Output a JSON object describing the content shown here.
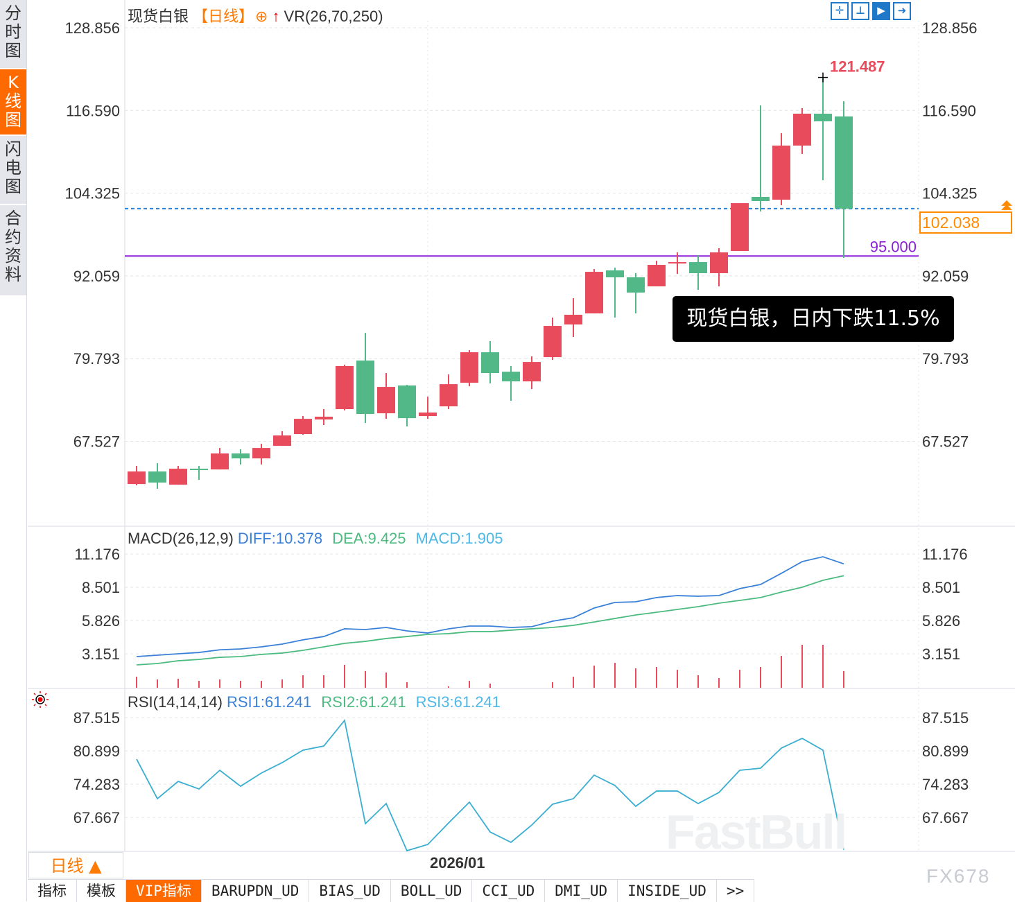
{
  "sidebar": {
    "items": [
      {
        "label": "分时图",
        "active": false
      },
      {
        "label": "K线图",
        "active": true
      },
      {
        "label": "闪电图",
        "active": false
      },
      {
        "label": "合约资料",
        "active": false
      }
    ]
  },
  "header": {
    "symbol": "现货白银",
    "period": "【日线】",
    "indicator": "VR(26,70,250)"
  },
  "toolbar": {
    "icons": [
      "crosshair-icon",
      "range-measure-icon",
      "play-chart-icon",
      "scroll-right-icon"
    ]
  },
  "annotation": "现货白银，日内下跌11.5%",
  "macd_header": {
    "name": "MACD(26,12,9)",
    "diff": "DIFF:10.378",
    "dea": "DEA:9.425",
    "macd": "MACD:1.905"
  },
  "rsi_header": {
    "name": "RSI(14,14,14)",
    "rsi1": "RSI1:61.241",
    "rsi2": "RSI2:61.241",
    "rsi3": "RSI3:61.241"
  },
  "bottom": {
    "period_button": "日线 ▲",
    "date_label": "2026/01"
  },
  "tabs": [
    "指标",
    "模板",
    "VIP指标",
    "BARUPDN_UD",
    "BIAS_UD",
    "BOLL_UD",
    "CCI_UD",
    "DMI_UD",
    "INSIDE_UD",
    ">>"
  ],
  "active_tab": 2,
  "watermark": {
    "brand": "FastBull",
    "code": "FX678"
  },
  "colors": {
    "up": "#e84b5c",
    "down": "#52b888",
    "diff": "#3a80d8",
    "dea": "#4cbb80",
    "rsi": "#3aaed0",
    "accent": "#ff6a00",
    "support": "#8a20d8",
    "last": "#ff8a00"
  },
  "chart_data": [
    {
      "type": "candlestick",
      "title": "现货白银【日线】",
      "y_ticks": [
        "128.856",
        "116.590",
        "104.325",
        "92.059",
        "79.793",
        "67.527"
      ],
      "ylim": [
        55.33,
        128.856
      ],
      "high_label": "121.487",
      "last_price": "102.038",
      "support_line": "95.000",
      "candles": [
        [
          61.19,
          63.87,
          60.99,
          63.05
        ],
        [
          63.05,
          64.28,
          60.48,
          61.4
        ],
        [
          61.09,
          63.87,
          61.09,
          63.46
        ],
        [
          63.46,
          63.87,
          61.81,
          63.35
        ],
        [
          63.35,
          66.54,
          63.35,
          65.72
        ],
        [
          65.72,
          66.34,
          64.08,
          64.99
        ],
        [
          64.99,
          67.16,
          64.08,
          66.54
        ],
        [
          66.85,
          69.01,
          66.85,
          68.39
        ],
        [
          68.6,
          71.27,
          68.5,
          70.86
        ],
        [
          70.76,
          72.3,
          69.94,
          71.17
        ],
        [
          72.3,
          78.88,
          72.1,
          78.68
        ],
        [
          79.5,
          83.61,
          70.24,
          71.58
        ],
        [
          71.68,
          77.65,
          70.86,
          75.59
        ],
        [
          75.8,
          75.9,
          69.73,
          70.96
        ],
        [
          71.27,
          74.15,
          70.86,
          71.79
        ],
        [
          72.71,
          77.44,
          72.3,
          76.0
        ],
        [
          76.21,
          81.04,
          75.69,
          80.73
        ],
        [
          80.73,
          82.38,
          76.11,
          77.65
        ],
        [
          77.85,
          78.68,
          73.53,
          76.41
        ],
        [
          76.41,
          80.12,
          75.28,
          79.29
        ],
        [
          80.01,
          85.87,
          79.6,
          84.64
        ],
        [
          84.85,
          88.75,
          83.0,
          86.29
        ],
        [
          86.49,
          93.07,
          86.49,
          92.66
        ],
        [
          92.87,
          93.28,
          85.87,
          91.84
        ],
        [
          91.84,
          92.46,
          86.49,
          89.58
        ],
        [
          90.5,
          94.31,
          90.5,
          93.69
        ],
        [
          93.89,
          95.54,
          92.35,
          94.1
        ],
        [
          94.1,
          95.13,
          89.99,
          92.46
        ],
        [
          92.46,
          96.16,
          90.5,
          95.54
        ],
        [
          95.75,
          102.84,
          95.75,
          102.84
        ],
        [
          103.77,
          117.34,
          101.61,
          103.15
        ],
        [
          103.36,
          113.22,
          102.53,
          111.38
        ],
        [
          111.38,
          116.93,
          110.14,
          116.11
        ],
        [
          116.11,
          121.487,
          106.23,
          114.98
        ],
        [
          115.7,
          117.96,
          94.72,
          102.038
        ]
      ],
      "candle_format": [
        "open",
        "high",
        "low",
        "close"
      ]
    },
    {
      "type": "line",
      "title": "MACD(26,12,9)",
      "y_ticks": [
        "11.176",
        "8.501",
        "5.826",
        "3.151"
      ],
      "series": [
        {
          "name": "DIFF",
          "values": [
            2.93,
            3.04,
            3.15,
            3.26,
            3.47,
            3.54,
            3.71,
            3.93,
            4.27,
            4.54,
            5.16,
            5.1,
            5.27,
            4.99,
            4.82,
            5.16,
            5.38,
            5.38,
            5.27,
            5.33,
            5.77,
            6.05,
            6.83,
            7.28,
            7.33,
            7.67,
            7.83,
            7.78,
            7.83,
            8.39,
            8.72,
            9.62,
            10.56,
            10.95,
            10.378
          ]
        },
        {
          "name": "DEA",
          "values": [
            2.26,
            2.37,
            2.59,
            2.7,
            2.87,
            2.93,
            3.1,
            3.21,
            3.43,
            3.71,
            3.99,
            4.15,
            4.38,
            4.54,
            4.71,
            4.77,
            4.93,
            4.93,
            5.05,
            5.16,
            5.27,
            5.44,
            5.71,
            5.99,
            6.27,
            6.49,
            6.72,
            6.94,
            7.22,
            7.44,
            7.67,
            8.11,
            8.5,
            9.06,
            9.425
          ]
        },
        {
          "name": "MACD",
          "type": "bar",
          "values": [
            1.27,
            0.95,
            1.03,
            0.79,
            0.95,
            0.79,
            0.79,
            0.95,
            1.43,
            1.43,
            2.62,
            1.91,
            1.75,
            0.64,
            0,
            0.16,
            0.79,
            0.48,
            0,
            0,
            0.64,
            1.27,
            2.54,
            2.86,
            2.22,
            2.38,
            2.06,
            1.43,
            1.11,
            2.06,
            2.38,
            3.65,
            4.92,
            4.92,
            1.905
          ]
        }
      ]
    },
    {
      "type": "line",
      "title": "RSI(14,14,14)",
      "y_ticks": [
        "87.515",
        "80.899",
        "74.283",
        "67.667"
      ],
      "series": [
        {
          "name": "RSI1",
          "values": [
            79.25,
            71.39,
            74.83,
            73.32,
            77.04,
            73.87,
            76.49,
            78.56,
            81.04,
            81.86,
            86.96,
            66.43,
            70.42,
            61.05,
            62.29,
            66.56,
            70.7,
            64.77,
            62.71,
            66.15,
            70.29,
            71.39,
            76.08,
            74.01,
            69.87,
            72.91,
            72.91,
            70.42,
            72.63,
            77.04,
            77.45,
            81.45,
            83.38,
            81.04,
            61.241
          ]
        }
      ],
      "x_label": "2026/01"
    }
  ]
}
